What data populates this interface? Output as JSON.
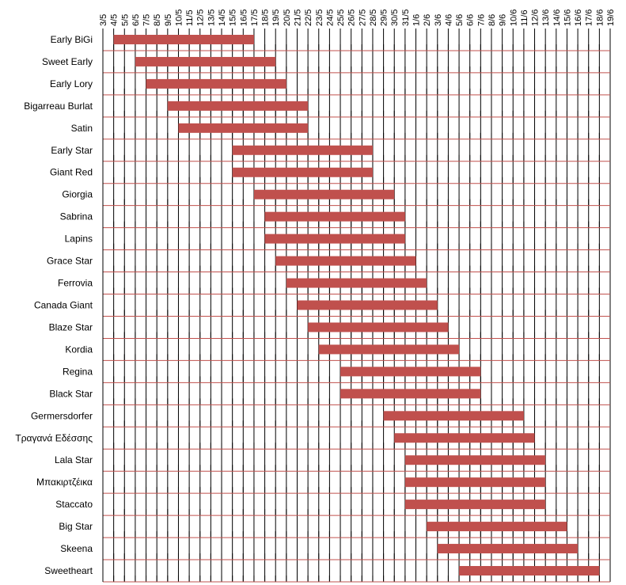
{
  "chart_data": {
    "type": "bar",
    "orientation": "horizontal-range",
    "title": "",
    "xlabel": "",
    "ylabel": "",
    "x_ticks": [
      "3/5",
      "4/5",
      "5/5",
      "6/5",
      "7/5",
      "8/5",
      "9/5",
      "10/5",
      "11/5",
      "12/5",
      "13/5",
      "14/5",
      "15/5",
      "16/5",
      "17/5",
      "18/5",
      "19/5",
      "20/5",
      "21/5",
      "22/5",
      "23/5",
      "24/5",
      "25/5",
      "26/5",
      "27/5",
      "28/5",
      "29/5",
      "30/5",
      "31/5",
      "1/6",
      "2/6",
      "3/6",
      "4/6",
      "5/6",
      "6/6",
      "7/6",
      "8/6",
      "9/6",
      "10/6",
      "11/6",
      "12/6",
      "13/6",
      "14/6",
      "15/6",
      "16/6",
      "17/6",
      "18/6",
      "19/6"
    ],
    "grid": true,
    "bar_color": "#c0504d",
    "baseline_color": "#c0504d",
    "categories": [
      "Early BiGi",
      "Sweet Early",
      "Early Lory",
      "Bigarreau Burlat",
      "Satin",
      "Early Star",
      "Giant Red",
      "Giorgia",
      "Sabrina",
      "Lapins",
      "Grace Star",
      "Ferrovia",
      "Canada Giant",
      "Blaze Star",
      "Kordia",
      "Regina",
      "Black Star",
      "Germersdorfer",
      "Τραγανά Εδέσσης",
      "Lala Star",
      "Μπακιρτζέικα",
      "Staccato",
      "Big Star",
      "Skeena",
      "Sweetheart"
    ],
    "ranges": [
      {
        "start": "4/5",
        "end": "17/5"
      },
      {
        "start": "6/5",
        "end": "19/5"
      },
      {
        "start": "7/5",
        "end": "20/5"
      },
      {
        "start": "9/5",
        "end": "22/5"
      },
      {
        "start": "10/5",
        "end": "22/5"
      },
      {
        "start": "15/5",
        "end": "28/5"
      },
      {
        "start": "15/5",
        "end": "28/5"
      },
      {
        "start": "17/5",
        "end": "30/5"
      },
      {
        "start": "18/5",
        "end": "31/5"
      },
      {
        "start": "18/5",
        "end": "31/5"
      },
      {
        "start": "19/5",
        "end": "1/6"
      },
      {
        "start": "20/5",
        "end": "2/6"
      },
      {
        "start": "21/5",
        "end": "3/6"
      },
      {
        "start": "22/5",
        "end": "4/6"
      },
      {
        "start": "23/5",
        "end": "5/6"
      },
      {
        "start": "25/5",
        "end": "7/6"
      },
      {
        "start": "25/5",
        "end": "7/6"
      },
      {
        "start": "29/5",
        "end": "11/6"
      },
      {
        "start": "30/5",
        "end": "12/6"
      },
      {
        "start": "31/5",
        "end": "13/6"
      },
      {
        "start": "31/5",
        "end": "13/6"
      },
      {
        "start": "31/5",
        "end": "13/6"
      },
      {
        "start": "2/6",
        "end": "15/6"
      },
      {
        "start": "3/6",
        "end": "16/6"
      },
      {
        "start": "5/6",
        "end": "18/6"
      }
    ]
  }
}
